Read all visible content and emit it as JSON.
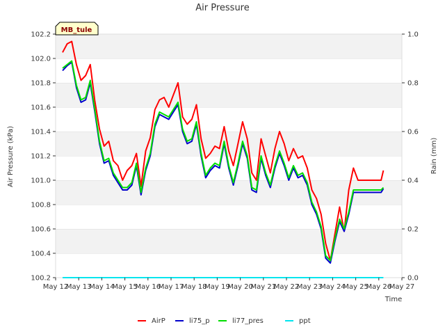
{
  "chart_data": {
    "type": "line",
    "title": "Air Pressure",
    "xlabel": "Time",
    "ylabel": "Air Pressure (kPa)",
    "y2label": "Rain (mm)",
    "badge": "MB_tule",
    "grid": "horizontal bands",
    "legend_position": "bottom-center",
    "x_ticks": [
      "May 12",
      "May 13",
      "May 14",
      "May 15",
      "May 16",
      "May 17",
      "May 18",
      "May 19",
      "May 20",
      "May 21",
      "May 22",
      "May 23",
      "May 24",
      "May 25",
      "May 26",
      "May 27"
    ],
    "xlim": [
      12,
      27
    ],
    "ylim": [
      100.2,
      102.2
    ],
    "y_ticks": [
      "100.2",
      "100.4",
      "100.6",
      "100.8",
      "101.0",
      "101.2",
      "101.4",
      "101.6",
      "101.8",
      "102.0",
      "102.2"
    ],
    "y2lim": [
      0.0,
      1.0
    ],
    "y2_ticks": [
      "0.0",
      "0.2",
      "0.4",
      "0.6",
      "0.8",
      "1.0"
    ],
    "x": [
      12.3,
      12.5,
      12.7,
      12.9,
      13.1,
      13.3,
      13.5,
      13.7,
      13.9,
      14.1,
      14.3,
      14.5,
      14.7,
      14.9,
      15.1,
      15.3,
      15.5,
      15.7,
      15.9,
      16.1,
      16.3,
      16.5,
      16.7,
      16.9,
      17.1,
      17.3,
      17.5,
      17.7,
      17.9,
      18.1,
      18.3,
      18.5,
      18.7,
      18.9,
      19.1,
      19.3,
      19.5,
      19.7,
      19.9,
      20.1,
      20.3,
      20.5,
      20.7,
      20.9,
      21.1,
      21.3,
      21.5,
      21.7,
      21.9,
      22.1,
      22.3,
      22.5,
      22.7,
      22.9,
      23.1,
      23.3,
      23.5,
      23.7,
      23.9,
      24.1,
      24.3,
      24.5,
      24.7,
      24.9,
      25.1,
      25.3,
      25.5,
      25.7,
      25.9,
      26.1,
      26.2
    ],
    "series": [
      {
        "name": "AirP",
        "color": "#ff0000",
        "axis": "left",
        "values": [
          102.05,
          102.12,
          102.14,
          101.95,
          101.82,
          101.86,
          101.95,
          101.65,
          101.42,
          101.28,
          101.32,
          101.16,
          101.12,
          101.0,
          101.08,
          101.12,
          101.22,
          100.95,
          101.24,
          101.35,
          101.58,
          101.66,
          101.68,
          101.6,
          101.7,
          101.8,
          101.52,
          101.46,
          101.5,
          101.62,
          101.34,
          101.18,
          101.22,
          101.28,
          101.26,
          101.44,
          101.24,
          101.12,
          101.3,
          101.48,
          101.34,
          101.06,
          101.0,
          101.34,
          101.2,
          101.06,
          101.26,
          101.4,
          101.3,
          101.16,
          101.26,
          101.18,
          101.2,
          101.1,
          100.92,
          100.85,
          100.72,
          100.48,
          100.34,
          100.56,
          100.78,
          100.58,
          100.92,
          101.1,
          101.0,
          101.0,
          101.0,
          101.0,
          101.0,
          101.0,
          101.08
        ]
      },
      {
        "name": "li75_p",
        "color": "#0000cc",
        "axis": "left",
        "values": [
          101.9,
          101.94,
          101.97,
          101.76,
          101.64,
          101.66,
          101.8,
          101.56,
          101.3,
          101.14,
          101.16,
          101.04,
          100.98,
          100.92,
          100.92,
          100.96,
          101.12,
          100.88,
          101.08,
          101.2,
          101.44,
          101.54,
          101.52,
          101.5,
          101.56,
          101.62,
          101.4,
          101.3,
          101.32,
          101.46,
          101.2,
          101.02,
          101.08,
          101.12,
          101.1,
          101.3,
          101.1,
          100.96,
          101.12,
          101.3,
          101.18,
          100.92,
          100.9,
          101.18,
          101.04,
          100.94,
          101.1,
          101.22,
          101.12,
          101.0,
          101.1,
          101.02,
          101.04,
          100.96,
          100.8,
          100.72,
          100.6,
          100.36,
          100.32,
          100.5,
          100.66,
          100.58,
          100.72,
          100.9,
          100.9,
          100.9,
          100.9,
          100.9,
          100.9,
          100.9,
          100.93
        ]
      },
      {
        "name": "li77_pres",
        "color": "#00dd00",
        "axis": "left",
        "values": [
          101.92,
          101.95,
          101.98,
          101.78,
          101.66,
          101.68,
          101.82,
          101.58,
          101.32,
          101.16,
          101.18,
          101.06,
          101.0,
          100.94,
          100.94,
          100.98,
          101.14,
          100.9,
          101.1,
          101.22,
          101.46,
          101.56,
          101.54,
          101.52,
          101.58,
          101.64,
          101.42,
          101.32,
          101.34,
          101.48,
          101.22,
          101.04,
          101.1,
          101.14,
          101.12,
          101.32,
          101.12,
          100.98,
          101.14,
          101.32,
          101.2,
          100.94,
          100.92,
          101.2,
          101.06,
          100.96,
          101.12,
          101.24,
          101.14,
          101.02,
          101.12,
          101.04,
          101.06,
          100.98,
          100.82,
          100.74,
          100.62,
          100.38,
          100.34,
          100.52,
          100.68,
          100.6,
          100.74,
          100.92,
          100.92,
          100.92,
          100.92,
          100.92,
          100.92,
          100.92,
          100.94
        ]
      },
      {
        "name": "ppt",
        "color": "#00e5ee",
        "axis": "right",
        "values": [
          0,
          0,
          0,
          0,
          0,
          0,
          0,
          0,
          0,
          0,
          0,
          0,
          0,
          0,
          0,
          0,
          0,
          0,
          0,
          0,
          0,
          0,
          0,
          0,
          0,
          0,
          0,
          0,
          0,
          0,
          0,
          0,
          0,
          0,
          0,
          0,
          0,
          0,
          0,
          0,
          0,
          0,
          0,
          0,
          0,
          0,
          0,
          0,
          0,
          0,
          0,
          0,
          0,
          0,
          0,
          0,
          0,
          0,
          0,
          0,
          0,
          0,
          0,
          0,
          0,
          0,
          0,
          0,
          0,
          0,
          0
        ]
      }
    ]
  }
}
